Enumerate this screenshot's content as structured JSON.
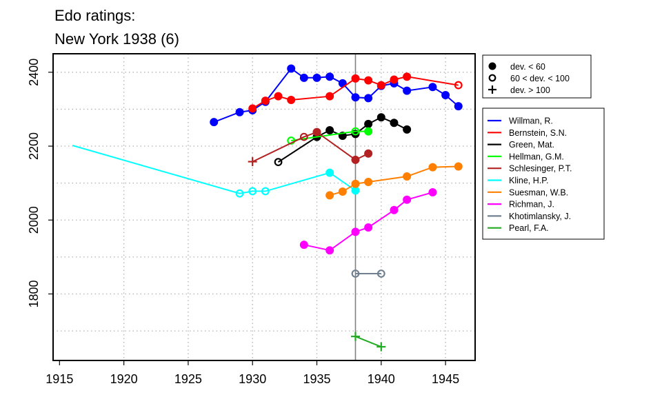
{
  "chart_data": {
    "type": "line",
    "title": "Edo ratings:",
    "subtitle": "New York 1938 (6)",
    "xlabel": "",
    "ylabel": "",
    "xlim": [
      1914.5,
      1947.3
    ],
    "ylim": [
      1620,
      2450
    ],
    "x_ticks": [
      1915,
      1920,
      1925,
      1930,
      1935,
      1940,
      1945
    ],
    "y_ticks": [
      1800,
      2000,
      2200,
      2400
    ],
    "x_grid": [
      1920,
      1925,
      1930,
      1935,
      1940,
      1945
    ],
    "y_grid": [
      1700,
      1800,
      1900,
      2000,
      2100,
      2200,
      2300,
      2400
    ],
    "grid": true,
    "reference_line_x": 1938,
    "reference_line_color": "#808080",
    "marker_legend": {
      "placement": "top-right, outside plot",
      "entries": [
        {
          "marker": "filled",
          "label": "dev. < 60"
        },
        {
          "marker": "open",
          "label": "60 < dev. < 100"
        },
        {
          "marker": "plus",
          "label": "dev. > 100"
        }
      ]
    },
    "legend": {
      "placement": "right, outside plot"
    },
    "series": [
      {
        "name": "Willman, R.",
        "color": "#0000ff",
        "points": [
          [
            1927,
            2265,
            "filled"
          ],
          [
            1929,
            2292,
            "filled"
          ],
          [
            1930,
            2297,
            "filled"
          ],
          [
            1931,
            2320,
            "filled"
          ],
          [
            1933,
            2410,
            "filled"
          ],
          [
            1934,
            2385,
            "filled"
          ],
          [
            1935,
            2385,
            "filled"
          ],
          [
            1936,
            2388,
            "filled"
          ],
          [
            1937,
            2370,
            "filled"
          ],
          [
            1938,
            2332,
            "filled"
          ],
          [
            1939,
            2330,
            "filled"
          ],
          [
            1940,
            2363,
            "filled"
          ],
          [
            1941,
            2370,
            "filled"
          ],
          [
            1942,
            2350,
            "filled"
          ],
          [
            1944,
            2360,
            "filled"
          ],
          [
            1945,
            2338,
            "filled"
          ],
          [
            1946,
            2308,
            "filled"
          ]
        ]
      },
      {
        "name": "Bernstein, S.N.",
        "color": "#ff0000",
        "points": [
          [
            1930,
            2302,
            "filled"
          ],
          [
            1931,
            2323,
            "filled"
          ],
          [
            1932,
            2335,
            "filled"
          ],
          [
            1933,
            2325,
            "filled"
          ],
          [
            1936,
            2335,
            "filled"
          ],
          [
            1938,
            2383,
            "filled"
          ],
          [
            1939,
            2378,
            "filled"
          ],
          [
            1940,
            2365,
            "filled"
          ],
          [
            1941,
            2380,
            "filled"
          ],
          [
            1942,
            2388,
            "filled"
          ],
          [
            1946,
            2365,
            "open"
          ]
        ]
      },
      {
        "name": "Green, Mat.",
        "color": "#000000",
        "points": [
          [
            1932,
            2157,
            "open"
          ],
          [
            1935,
            2225,
            "filled"
          ],
          [
            1936,
            2243,
            "filled"
          ],
          [
            1937,
            2228,
            "filled"
          ],
          [
            1938,
            2233,
            "filled"
          ],
          [
            1939,
            2260,
            "filled"
          ],
          [
            1940,
            2278,
            "filled"
          ],
          [
            1941,
            2263,
            "filled"
          ],
          [
            1942,
            2245,
            "filled"
          ]
        ]
      },
      {
        "name": "Hellman, G.M.",
        "color": "#00ff00",
        "points": [
          [
            1933,
            2215,
            "open"
          ],
          [
            1938,
            2240,
            "open"
          ],
          [
            1939,
            2240,
            "filled"
          ]
        ]
      },
      {
        "name": "Schlesinger, P.T.",
        "color": "#b22222",
        "points": [
          [
            1930,
            2158,
            "plus"
          ],
          [
            1934,
            2225,
            "open"
          ],
          [
            1935,
            2238,
            "filled"
          ],
          [
            1938,
            2163,
            "filled"
          ],
          [
            1939,
            2180,
            "filled"
          ]
        ]
      },
      {
        "name": "Kline, H.P.",
        "color": "#00ffff",
        "points": [
          [
            1916,
            2202,
            "none"
          ],
          [
            1929,
            2072,
            "open"
          ],
          [
            1930,
            2078,
            "open"
          ],
          [
            1931,
            2078,
            "open"
          ],
          [
            1936,
            2128,
            "filled"
          ],
          [
            1938,
            2080,
            "filled"
          ]
        ]
      },
      {
        "name": "Suesman, W.B.",
        "color": "#ff7f00",
        "points": [
          [
            1936,
            2067,
            "filled"
          ],
          [
            1937,
            2077,
            "filled"
          ],
          [
            1938,
            2098,
            "filled"
          ],
          [
            1939,
            2103,
            "filled"
          ],
          [
            1942,
            2118,
            "filled"
          ],
          [
            1944,
            2143,
            "filled"
          ],
          [
            1946,
            2145,
            "filled"
          ]
        ]
      },
      {
        "name": "Richman, J.",
        "color": "#ff00ff",
        "points": [
          [
            1934,
            1933,
            "filled"
          ],
          [
            1936,
            1918,
            "filled"
          ],
          [
            1938,
            1968,
            "filled"
          ],
          [
            1939,
            1980,
            "filled"
          ],
          [
            1941,
            2027,
            "filled"
          ],
          [
            1942,
            2055,
            "filled"
          ],
          [
            1944,
            2075,
            "filled"
          ]
        ]
      },
      {
        "name": "Khotimlansky, J.",
        "color": "#708090",
        "points": [
          [
            1938,
            1855,
            "open"
          ],
          [
            1940,
            1855,
            "open"
          ]
        ]
      },
      {
        "name": "Pearl, F.A.",
        "color": "#22aa22",
        "points": [
          [
            1938,
            1685,
            "plus"
          ],
          [
            1940,
            1657,
            "plus"
          ]
        ]
      }
    ]
  }
}
